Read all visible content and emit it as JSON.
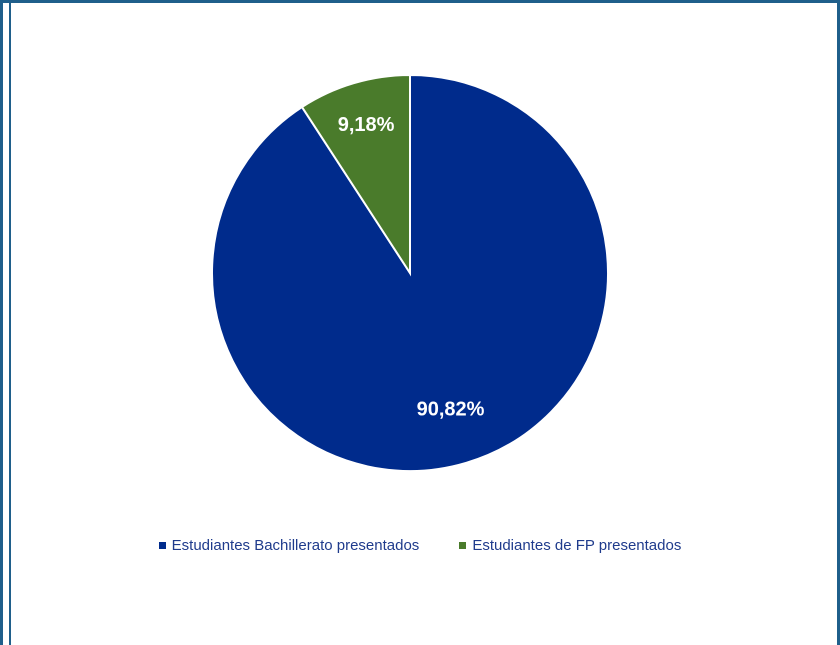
{
  "chart_data": {
    "type": "pie",
    "title": "",
    "categories": [
      "Estudiantes Bachillerato presentados",
      "Estudiantes de FP presentados"
    ],
    "values": [
      90.82,
      9.18
    ],
    "labels": [
      "90,82%",
      "9,18%"
    ],
    "colors": [
      "#002b8c",
      "#4a7b2b"
    ],
    "legend_position": "bottom",
    "slice_label_color": "#ffffff"
  },
  "legend": {
    "items": [
      {
        "label": "Estudiantes Bachillerato presentados",
        "color": "#002b8c"
      },
      {
        "label": "Estudiantes de FP presentados",
        "color": "#4a7b2b"
      }
    ]
  },
  "frame_color": "#1f5f8b"
}
